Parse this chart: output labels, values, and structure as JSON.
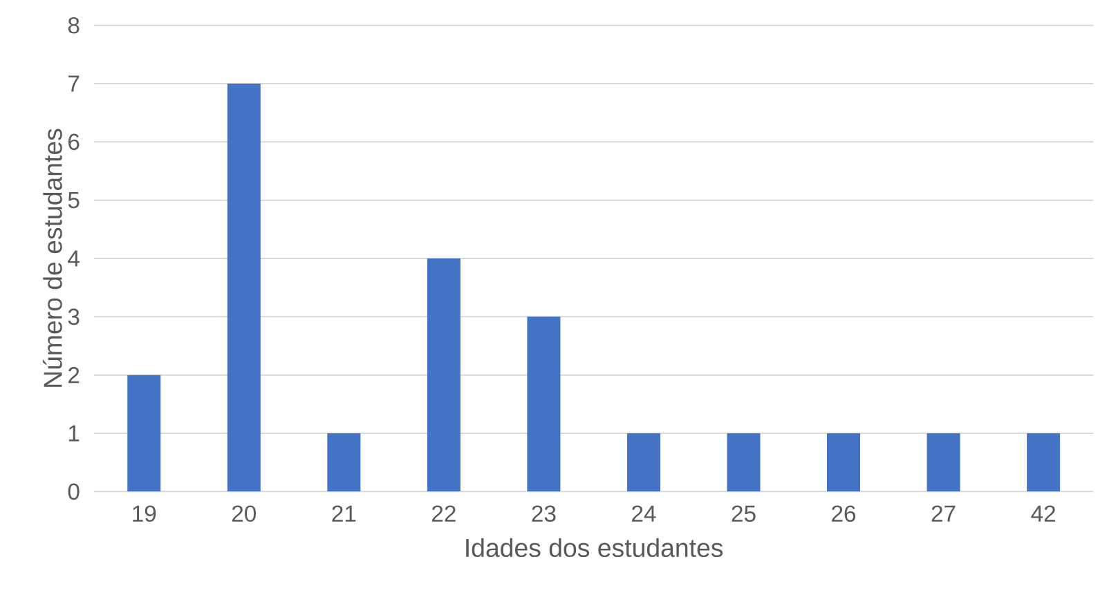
{
  "chart_data": {
    "type": "bar",
    "xlabel": "Idades dos estudantes",
    "ylabel": "Número de estudantes",
    "categories": [
      "19",
      "20",
      "21",
      "22",
      "23",
      "24",
      "25",
      "26",
      "27",
      "42"
    ],
    "values": [
      2,
      7,
      1,
      4,
      3,
      1,
      1,
      1,
      1,
      1
    ],
    "color": "#4472c4",
    "ylim": [
      0,
      8
    ],
    "yticks": [
      0,
      1,
      2,
      3,
      4,
      5,
      6,
      7,
      8
    ],
    "grid": "y"
  }
}
